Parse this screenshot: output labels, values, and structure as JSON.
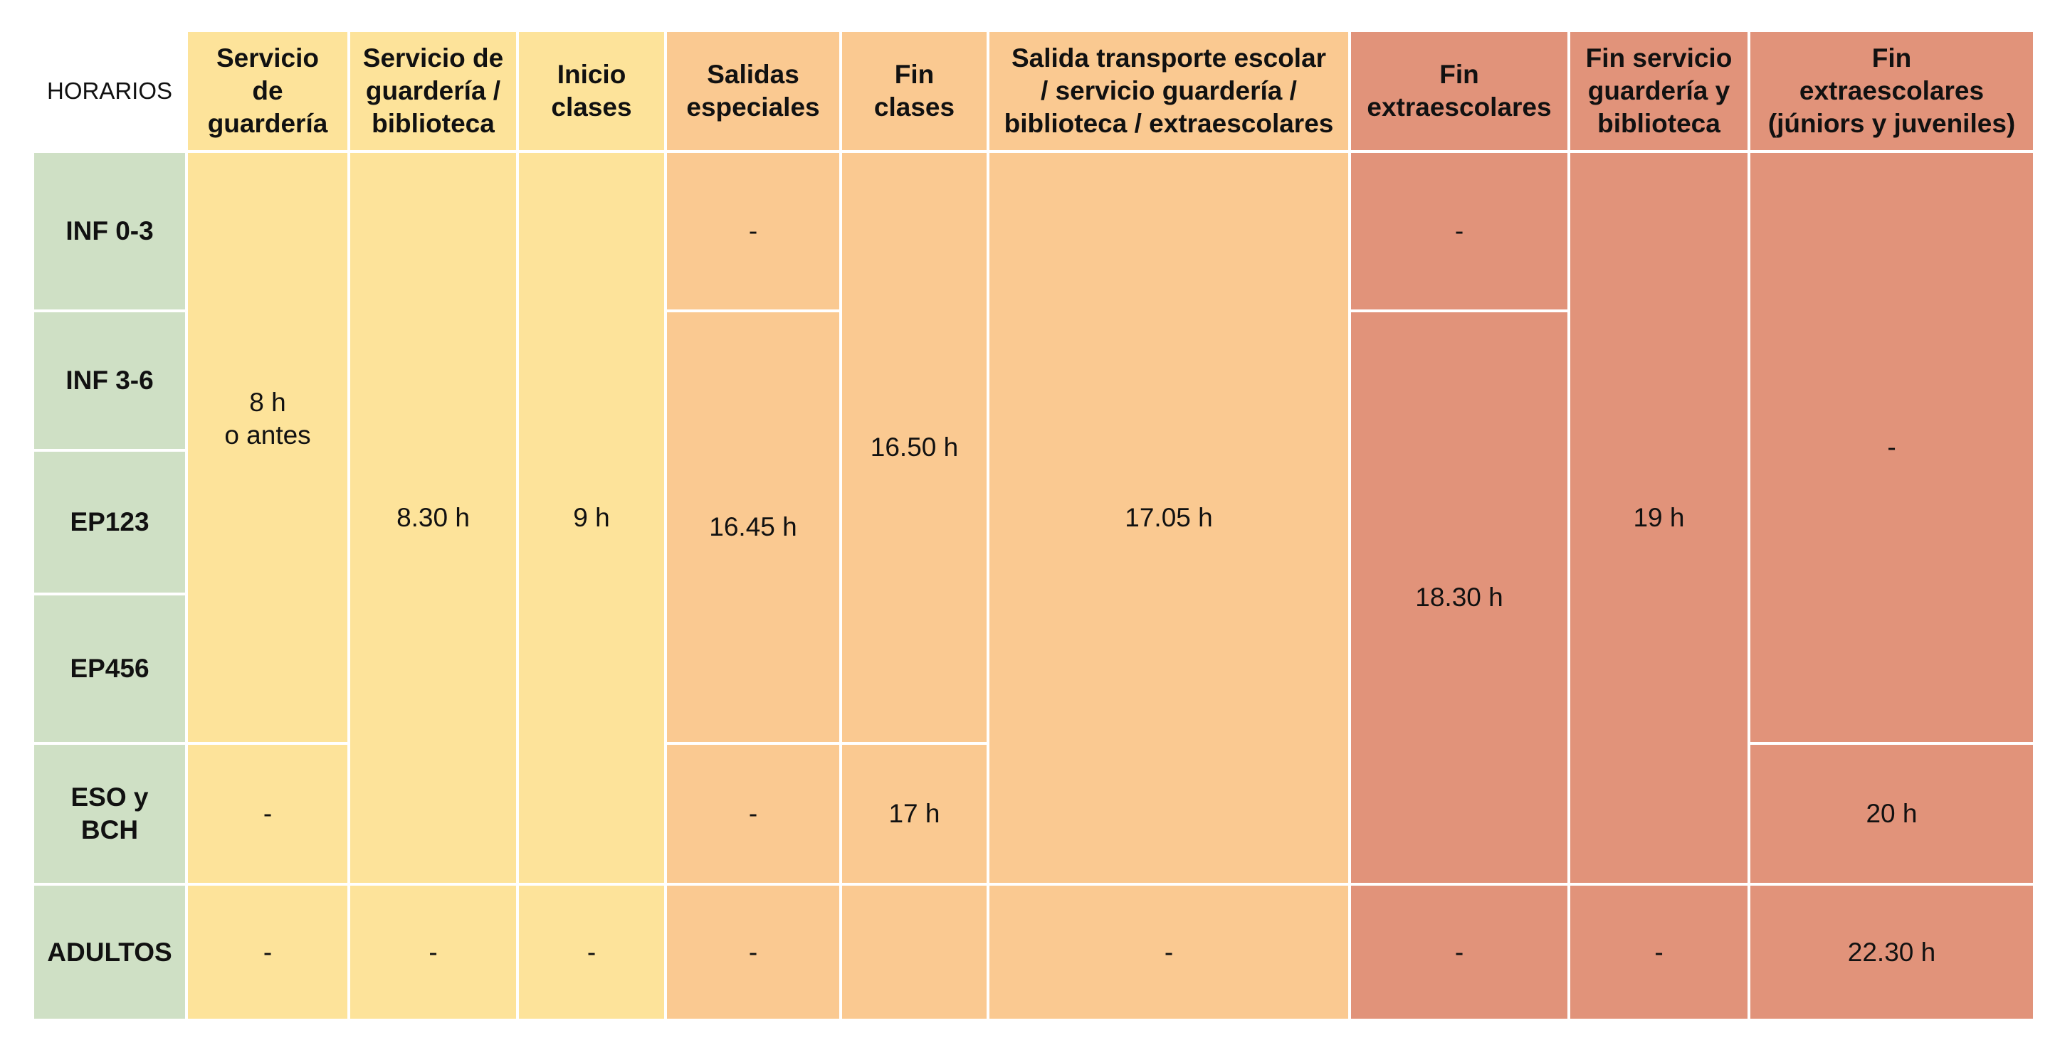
{
  "corner_label": "HORARIOS",
  "colors": {
    "yellow": "#fde39a",
    "orange": "#fac991",
    "salmon": "#e1937a",
    "green": "#cfe0c5"
  },
  "columns": [
    "Servicio\nde\nguardería",
    "Servicio de\nguardería /\nbiblioteca",
    "Inicio\nclases",
    "Salidas\nespeciales",
    "Fin\nclases",
    "Salida transporte escolar\n/ servicio guardería /\nbiblioteca / extraescolares",
    "Fin\nextraescolares",
    "Fin servicio\nguardería y\nbiblioteca",
    "Fin\nextraescolares\n(júniors y juveniles)"
  ],
  "rows": [
    "INF 0-3",
    "INF 3-6",
    "EP123",
    "EP456",
    "ESO y\nBCH",
    "ADULTOS"
  ],
  "cells": {
    "guarderia_infantil_primaria": "8 h\no antes",
    "guarderia_eso": "-",
    "guarderia_adultos": "-",
    "biblioteca_general": "8.30 h",
    "biblioteca_adultos": "-",
    "inicio_general": "9 h",
    "inicio_adultos": "-",
    "salidas_inf03": "-",
    "salidas_general": "16.45 h",
    "salidas_eso": "-",
    "salidas_adultos": "-",
    "fin_clases_general": "16.50 h",
    "fin_clases_eso": "17 h",
    "fin_clases_adultos": "",
    "transporte_general": "17.05 h",
    "transporte_adultos": "-",
    "extra_inf03": "-",
    "extra_general": "18.30 h",
    "extra_adultos": "-",
    "fin_servicio_general": "19 h",
    "fin_servicio_adultos": "-",
    "juniors_general": "-",
    "juniors_eso": "20 h",
    "juniors_adultos": "22.30 h"
  }
}
